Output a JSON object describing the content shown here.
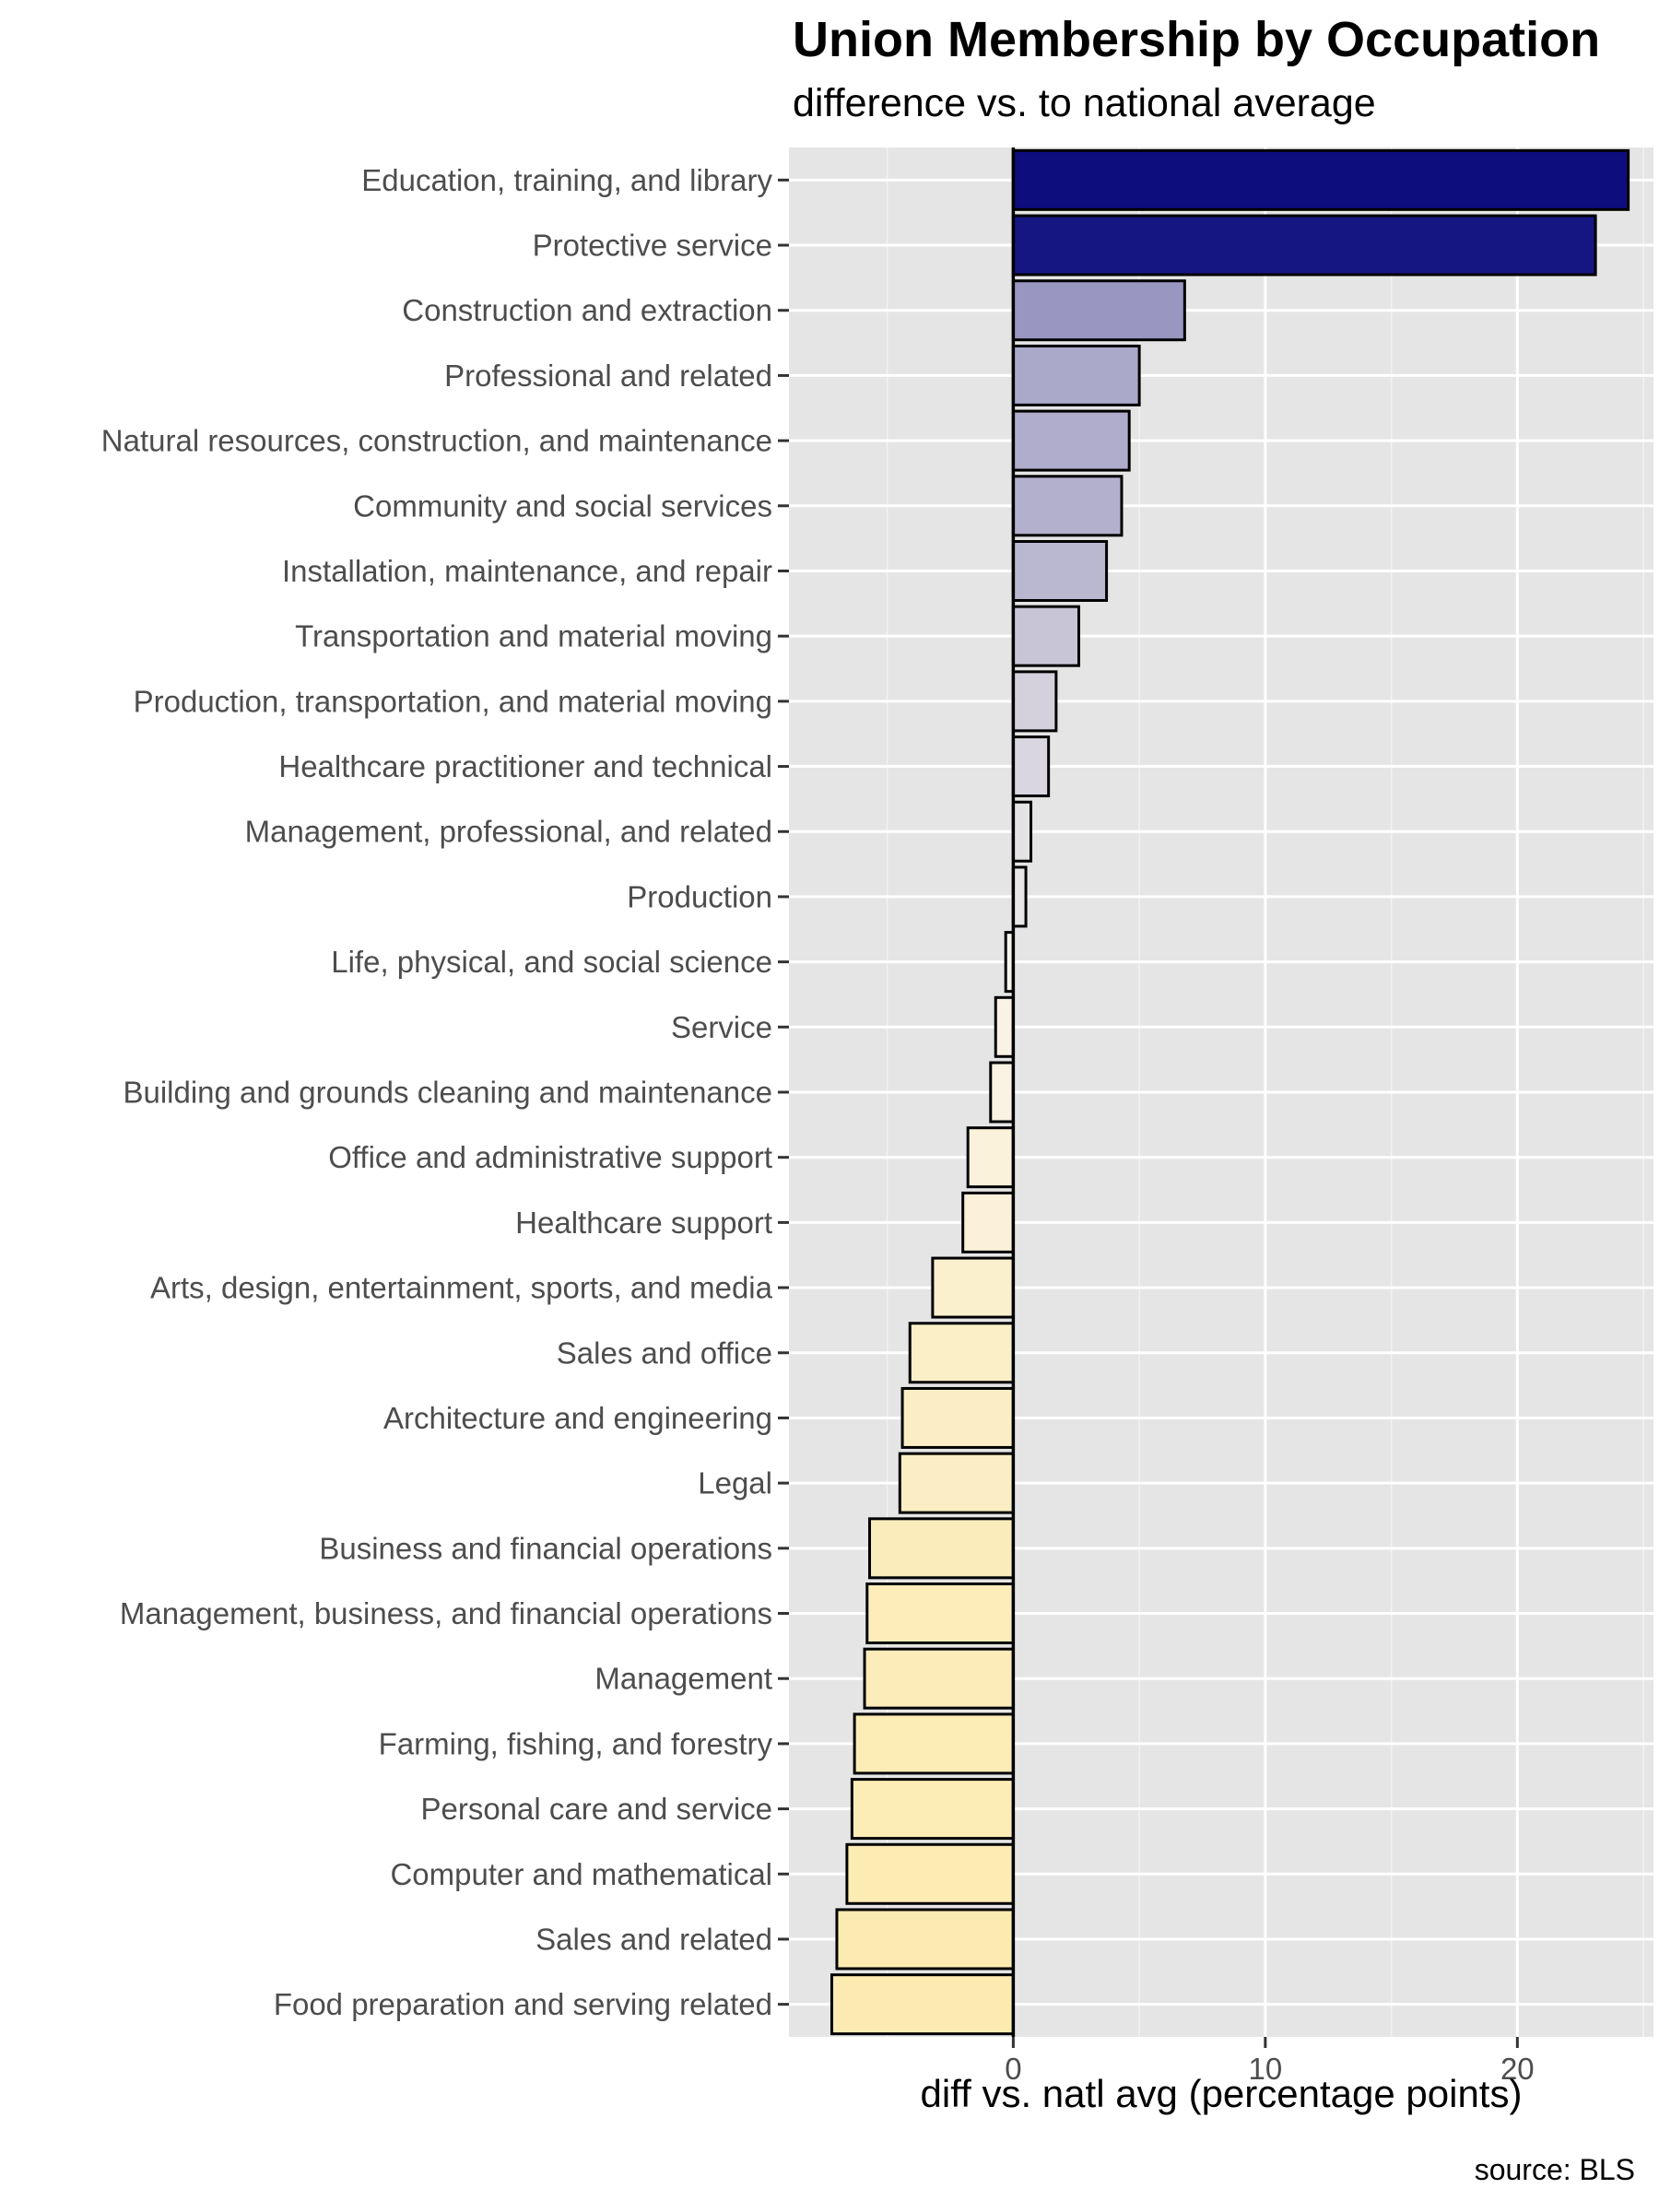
{
  "chart_data": {
    "type": "bar",
    "orientation": "horizontal",
    "title": "Union Membership by Occupation",
    "subtitle": "difference vs. to national average",
    "xlabel": "diff vs. natl avg (percentage points)",
    "ylabel": "",
    "caption": "source: BLS",
    "categories": [
      "Education, training, and library",
      "Protective service",
      "Construction and extraction",
      "Professional and related",
      "Natural resources, construction, and maintenance",
      "Community and social services",
      "Installation, maintenance, and repair",
      "Transportation and material moving",
      "Production, transportation, and material moving",
      "Healthcare practitioner and technical",
      "Management, professional, and related",
      "Production",
      "Life, physical, and social science",
      "Service",
      "Building and grounds cleaning and maintenance",
      "Office and administrative support",
      "Healthcare support",
      "Arts, design, entertainment, sports, and media",
      "Sales and office",
      "Architecture and engineering",
      "Legal",
      "Business and financial operations",
      "Management, business, and financial operations",
      "Management",
      "Farming, fishing, and forestry",
      "Personal care and service",
      "Computer and mathematical",
      "Sales and related",
      "Food preparation and serving related"
    ],
    "values": [
      24.4,
      23.1,
      6.8,
      5.0,
      4.6,
      4.3,
      3.7,
      2.6,
      1.7,
      1.4,
      0.7,
      0.5,
      -0.3,
      -0.7,
      -0.9,
      -1.8,
      -2.0,
      -3.2,
      -4.1,
      -4.4,
      -4.5,
      -5.7,
      -5.8,
      -5.9,
      -6.3,
      -6.4,
      -6.6,
      -7.0,
      -7.2
    ],
    "xlim": [
      -8.9,
      25.4
    ],
    "xticks": [
      0,
      10,
      20
    ],
    "grid": true,
    "legend": "none",
    "colors": {
      "panel_bg": "#e5e5e5",
      "grid_major": "#ffffff",
      "grid_minor": "#f2f2f2",
      "bar_outline": "#000000",
      "zero_line": "#000000",
      "tick_text": "#4d4d4d",
      "tick_mark": "#333333",
      "high": "#0d0d7e",
      "mid": "#f9f5ef",
      "low": "#fcebb0"
    }
  }
}
